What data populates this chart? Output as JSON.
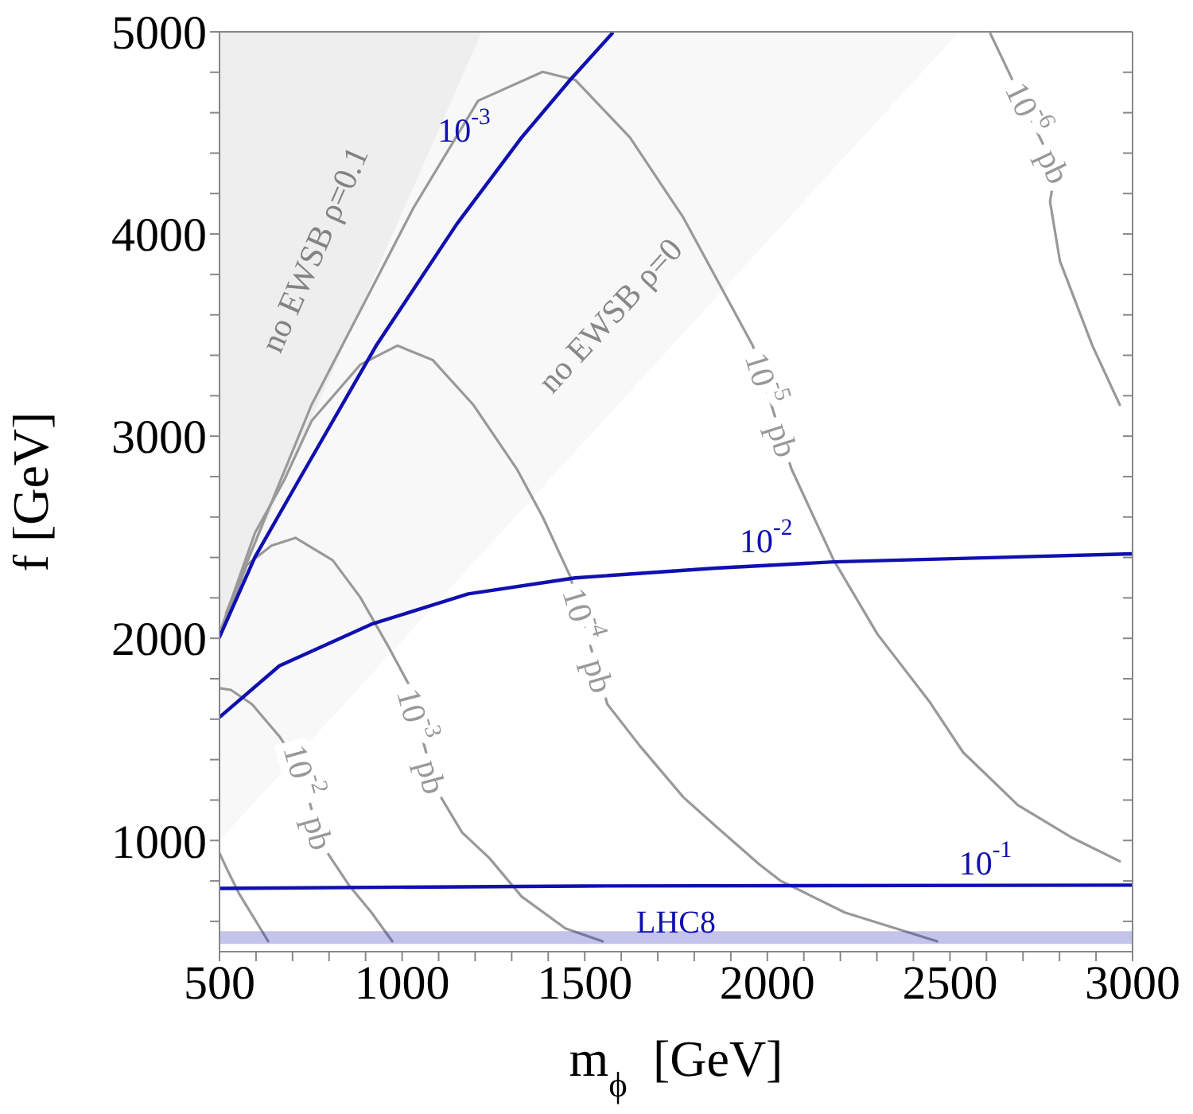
{
  "chart_data": {
    "type": "line",
    "xlabel": "m$_{ϕ}$ [GeV]",
    "ylabel": "f [GeV]",
    "xlim": [
      500,
      3000
    ],
    "xticks": [
      500,
      {
        "value": 600,
        "label": null
      },
      {
        "value": 700,
        "label": null
      },
      {
        "value": 800,
        "label": null
      },
      {
        "value": 900,
        "label": null
      },
      1000,
      {
        "value": 1100,
        "label": null
      },
      {
        "value": 1200,
        "label": null
      },
      {
        "value": 1300,
        "label": null
      },
      {
        "value": 1400,
        "label": null
      },
      1500,
      {
        "value": 1600,
        "label": null
      },
      {
        "value": 1700,
        "label": null
      },
      {
        "value": 1800,
        "label": null
      },
      {
        "value": 1900,
        "label": null
      },
      2000,
      {
        "value": 2100,
        "label": null
      },
      {
        "value": 2200,
        "label": null
      },
      {
        "value": 2300,
        "label": null
      },
      {
        "value": 2400,
        "label": null
      },
      2500,
      {
        "value": 2600,
        "label": null
      },
      {
        "value": 2700,
        "label": null
      },
      {
        "value": 2800,
        "label": null
      },
      {
        "value": 2900,
        "label": null
      },
      3000
    ],
    "ylim": [
      450,
      5000
    ],
    "yticks": [
      {
        "value": 600,
        "label": null
      },
      {
        "value": 800,
        "label": null
      },
      1000,
      {
        "value": 1200,
        "label": null
      },
      {
        "value": 1400,
        "label": null
      },
      {
        "value": 1600,
        "label": null
      },
      {
        "value": 1800,
        "label": null
      },
      2000,
      {
        "value": 2200,
        "label": null
      },
      {
        "value": 2400,
        "label": null
      },
      {
        "value": 2600,
        "label": null
      },
      {
        "value": 2800,
        "label": null
      },
      3000,
      {
        "value": 3200,
        "label": null
      },
      {
        "value": 3400,
        "label": null
      },
      {
        "value": 3600,
        "label": null
      },
      {
        "value": 3800,
        "label": null
      },
      4000,
      {
        "value": 4200,
        "label": null
      },
      {
        "value": 4400,
        "label": null
      },
      {
        "value": 4600,
        "label": null
      },
      {
        "value": 4800,
        "label": null
      },
      5000
    ],
    "marker": "none",
    "line_style": "solid",
    "series": [
      {
        "type": "area",
        "name": "no EWSB ρ=0",
        "color": "#f8f8f8",
        "x": [
          500,
          2525
        ],
        "values": [
          1000,
          5000
        ]
      },
      {
        "type": "area",
        "name": "no EWSB ρ=0.1",
        "color": "#eeeeee",
        "x": [
          500,
          1218
        ],
        "values": [
          2050,
          5000
        ]
      },
      {
        "color": "#999999",
        "x": [
          500,
          520,
          553,
          633
        ],
        "values": [
          937,
          860,
          739,
          502
        ]
      },
      {
        "color": "#999999",
        "x": [
          500,
          531,
          589,
          664,
          721,
          761,
          796,
          854,
          916,
          973
        ],
        "values": [
          1753,
          1745,
          1674,
          1515,
          1357,
          1096,
          938,
          780,
          644,
          501
        ]
      },
      {
        "color": "#999999",
        "x": [
          509,
          575,
          642,
          708,
          810,
          885,
          960,
          1031,
          1049,
          1093,
          1164,
          1239,
          1327,
          1447,
          1549
        ],
        "values": [
          2046,
          2363,
          2458,
          2497,
          2386,
          2204,
          1967,
          1729,
          1547,
          1254,
          1040,
          913,
          723,
          565,
          501
        ]
      },
      {
        "color": "#999999",
        "x": [
          505,
          597,
          677,
          752,
          885,
          987,
          1084,
          1195,
          1314,
          1385,
          1460,
          1562,
          1651,
          1770,
          1858,
          1978,
          2035,
          2212,
          2465
        ],
        "values": [
          2050,
          2521,
          2782,
          3075,
          3353,
          3448,
          3376,
          3155,
          2838,
          2600,
          2307,
          1674,
          1468,
          1214,
          1072,
          882,
          802,
          644,
          501
        ]
      },
      {
        "color": "#999999",
        "x": [
          518,
          752,
          1031,
          1208,
          1385,
          1474,
          1624,
          1770,
          1960,
          2066,
          2182,
          2301,
          2443,
          2536,
          2686,
          2832,
          2965
        ],
        "values": [
          2125,
          3155,
          4129,
          4659,
          4802,
          4762,
          4477,
          4081,
          3448,
          2838,
          2386,
          2022,
          1689,
          1436,
          1175,
          1016,
          897
        ]
      },
      {
        "color": "#999999",
        "x": [
          2611,
          2788,
          2774,
          2801,
          2890,
          2965
        ],
        "values": [
          4990,
          4319,
          4160,
          3867,
          3448,
          3155
        ]
      },
      {
        "color": "#1010b0",
        "x": [
          500,
          597,
          717,
          929,
          1150,
          1327,
          1460,
          1575
        ],
        "values": [
          2006,
          2402,
          2782,
          3448,
          4050,
          4477,
          4762,
          4992
        ]
      },
      {
        "color": "#1010b0",
        "x": [
          500,
          664,
          916,
          1181,
          1474,
          1858,
          2182,
          3000
        ],
        "values": [
          1610,
          1864,
          2070,
          2220,
          2299,
          2347,
          2378,
          2418
        ]
      },
      {
        "color": "#1010b0",
        "x": [
          500,
          1500,
          3000
        ],
        "values": [
          763,
          775,
          779
        ]
      }
    ],
    "ref_lines": [
      {
        "axis": "y",
        "value": 520,
        "label": "LHC8",
        "color": "#1010b0"
      }
    ],
    "annotations": [
      {
        "text": "10$^{-6}$ pb",
        "x": 2740,
        "y": 4500
      },
      {
        "text": "10$^{-5}$ pb",
        "x": 2011,
        "y": 3155
      },
      {
        "text": "10$^{-4}$ pb",
        "x": 1509,
        "y": 1990
      },
      {
        "text": "10$^{-3}$ pb",
        "x": 1053,
        "y": 1491
      },
      {
        "text": "10$^{-2}$ pb",
        "x": 743,
        "y": 1214
      },
      {
        "text": "10$^{-3}$",
        "x": 1280,
        "y": 4364
      },
      {
        "text": "10$^{-2}$",
        "x": 2000,
        "y": 2361
      },
      {
        "text": "10$^{-1}$",
        "x": 2597,
        "y": 778
      }
    ]
  }
}
